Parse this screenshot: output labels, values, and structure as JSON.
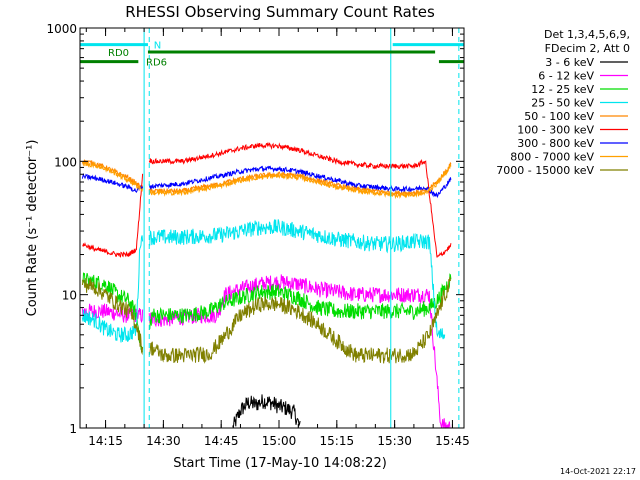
{
  "chart_data": {
    "type": "line",
    "title": "RHESSI Observing Summary Count Rates",
    "xlabel": "Start Time (17-May-10 14:08:22)",
    "ylabel": "Count Rate (s⁻¹ detector⁻¹)",
    "timestamp": "14-Oct-2021 22:17",
    "y_scale": "log",
    "ylim": [
      1,
      1000
    ],
    "xlim": [
      "14:08:22",
      "15:48:00"
    ],
    "x_tick_labels": [
      "14:15",
      "14:30",
      "14:45",
      "15:00",
      "15:15",
      "15:30",
      "15:45"
    ],
    "x_tick_values": [
      "14:15",
      "14:30",
      "14:45",
      "15:00",
      "15:15",
      "15:30",
      "15:45"
    ],
    "y_tick_labels": [
      "1",
      "10",
      "100",
      "1000"
    ],
    "y_tick_values": [
      1,
      10,
      100,
      1000
    ],
    "legend": {
      "placement": "right",
      "header": [
        "Det 1,3,4,5,6,9,",
        "FDecim 2, Att 0"
      ]
    },
    "flags": [
      {
        "label": "N",
        "color": "#00e5ee",
        "segments": [
          [
            "14:08:22",
            "14:26:00"
          ],
          [
            "15:29:30",
            "15:48:00"
          ]
        ],
        "level": 750,
        "label_at": "14:27:30"
      },
      {
        "label": "RD0",
        "color": "#008000",
        "segments": [
          [
            "14:26:00",
            "15:40:30"
          ]
        ],
        "level": 660,
        "label_at": "14:25:30"
      },
      {
        "label": "RD6",
        "color": "#008000",
        "segments": [
          [
            "14:08:22",
            "14:23:30"
          ],
          [
            "15:41:30",
            "15:48:00"
          ]
        ],
        "level": 560,
        "label_at": "14:25:30"
      }
    ],
    "vlines": [
      {
        "t": "14:25:00",
        "color": "#00e5ee",
        "style": "solid"
      },
      {
        "t": "15:29:00",
        "color": "#00e5ee",
        "style": "solid"
      },
      {
        "t": "14:26:20",
        "color": "#00e5ee",
        "style": "dashed"
      },
      {
        "t": "15:46:40",
        "color": "#00e5ee",
        "style": "dashed"
      }
    ],
    "gaps": [
      [
        "14:24:40",
        "14:26:20"
      ],
      [
        "15:44:40",
        "15:46:40"
      ]
    ],
    "series": [
      {
        "name": "3 - 6 keV",
        "color": "#000000",
        "x": [
          "14:48:00",
          "14:50:00",
          "14:52:00",
          "14:54:00",
          "14:56:00",
          "14:58:00",
          "15:00:00",
          "15:02:00",
          "15:04:00",
          "15:05:30"
        ],
        "y": [
          1.0,
          1.35,
          1.55,
          1.5,
          1.6,
          1.55,
          1.45,
          1.4,
          1.3,
          1.0
        ]
      },
      {
        "name": "6 - 12 keV",
        "color": "#ff00ff",
        "x": [
          "14:09:00",
          "14:15:00",
          "14:20:00",
          "14:24:00",
          "14:27:00",
          "14:30:00",
          "14:36:00",
          "14:40:00",
          "14:44:00",
          "14:46:00",
          "14:50:00",
          "14:55:00",
          "15:00:00",
          "15:05:00",
          "15:10:00",
          "15:15:00",
          "15:20:00",
          "15:25:00",
          "15:30:00",
          "15:36:00",
          "15:39:00",
          "15:42:00",
          "15:45:00"
        ],
        "y": [
          7.5,
          7.5,
          7,
          7,
          6.6,
          6.5,
          6.8,
          7.0,
          7.0,
          10.0,
          11.0,
          12.0,
          12.5,
          12.0,
          11.0,
          10.5,
          10.0,
          10.0,
          10.0,
          10.0,
          10.0,
          1.05,
          1.0
        ]
      },
      {
        "name": "12 - 25 keV",
        "color": "#00dd00",
        "x": [
          "14:09:00",
          "14:15:00",
          "14:18:00",
          "14:21:00",
          "14:23:00",
          "14:25:00",
          "14:27:00",
          "14:30:00",
          "14:36:00",
          "14:42:00",
          "14:45:00",
          "14:50:00",
          "14:55:00",
          "15:00:00",
          "15:05:00",
          "15:10:00",
          "15:15:00",
          "15:20:00",
          "15:25:00",
          "15:30:00",
          "15:35:00",
          "15:39:00",
          "15:41:00",
          "15:43:00",
          "15:45:00"
        ],
        "y": [
          13,
          12,
          10,
          9,
          7,
          3.0,
          7.0,
          7.0,
          7.0,
          7.5,
          8.5,
          9.5,
          10.5,
          10.5,
          9.5,
          8.0,
          7.5,
          7.5,
          7.5,
          7.5,
          7.5,
          8.0,
          9.0,
          11,
          14
        ]
      },
      {
        "name": "25 - 50 keV",
        "color": "#00e5ee",
        "x": [
          "14:09:00",
          "14:12:00",
          "14:15:00",
          "14:18:00",
          "14:21:00",
          "14:23:00",
          "14:24:00",
          "14:27:00",
          "14:35:00",
          "14:45:00",
          "14:50:00",
          "14:55:00",
          "15:00:00",
          "15:05:00",
          "15:10:00",
          "15:15:00",
          "15:20:00",
          "15:25:00",
          "15:30:00",
          "15:35:00",
          "15:39:00",
          "15:41:00",
          "15:43:00"
        ],
        "y": [
          7,
          6.5,
          5.5,
          5.0,
          5.0,
          5.5,
          26,
          27,
          27,
          28,
          30,
          32,
          32,
          30,
          28,
          26,
          25,
          24,
          24,
          25,
          25,
          5.0,
          5.0
        ]
      },
      {
        "name": "50 - 100 keV",
        "color": "#ff8800",
        "x": [
          "14:09:00",
          "14:12:00",
          "14:15:00",
          "14:18:00",
          "14:21:00",
          "14:23:00",
          "14:25:00",
          "14:27:00",
          "14:35:00",
          "14:45:00",
          "14:50:00",
          "14:55:00",
          "15:00:00",
          "15:05:00",
          "15:10:00",
          "15:15:00",
          "15:20:00",
          "15:25:00",
          "15:30:00",
          "15:35:00",
          "15:38:00",
          "15:41:00",
          "15:44:00",
          "15:45:00"
        ],
        "y": [
          100,
          97,
          90,
          82,
          75,
          68,
          62,
          60,
          60,
          68,
          74,
          78,
          80,
          78,
          72,
          66,
          62,
          60,
          58,
          58,
          60,
          70,
          90,
          100
        ]
      },
      {
        "name": "100 - 300 keV",
        "color": "#ff0000",
        "x": [
          "14:09:00",
          "14:12:00",
          "14:15:00",
          "14:18:00",
          "14:21:00",
          "14:23:00",
          "14:25:00",
          "14:27:00",
          "14:35:00",
          "14:45:00",
          "14:50:00",
          "14:55:00",
          "15:00:00",
          "15:05:00",
          "15:10:00",
          "15:15:00",
          "15:20:00",
          "15:25:00",
          "15:30:00",
          "15:35:00",
          "15:38:00",
          "15:41:00",
          "15:43:00",
          "15:45:00"
        ],
        "y": [
          24,
          22,
          21,
          20,
          20,
          22,
          110,
          100,
          100,
          115,
          125,
          132,
          130,
          122,
          110,
          100,
          95,
          92,
          92,
          92,
          100,
          19,
          21,
          24
        ]
      },
      {
        "name": "300 - 800 keV",
        "color": "#0000ff",
        "x": [
          "14:09:00",
          "14:12:00",
          "14:15:00",
          "14:18:00",
          "14:21:00",
          "14:23:00",
          "14:25:00",
          "14:27:00",
          "14:35:00",
          "14:45:00",
          "14:50:00",
          "14:55:00",
          "15:00:00",
          "15:05:00",
          "15:10:00",
          "15:15:00",
          "15:20:00",
          "15:25:00",
          "15:30:00",
          "15:35:00",
          "15:38:00",
          "15:41:00",
          "15:44:00",
          "15:45:00"
        ],
        "y": [
          77,
          75,
          72,
          68,
          64,
          60,
          66,
          65,
          68,
          78,
          84,
          88,
          88,
          84,
          78,
          72,
          66,
          64,
          62,
          62,
          64,
          55,
          70,
          77
        ]
      },
      {
        "name": "800 - 7000 keV",
        "color": "#ffa000",
        "x": [
          "14:09:00",
          "14:12:00",
          "14:15:00",
          "14:18:00",
          "14:21:00",
          "14:23:00",
          "14:25:00",
          "14:27:00",
          "14:35:00",
          "14:45:00",
          "14:50:00",
          "14:55:00",
          "15:00:00",
          "15:05:00",
          "15:10:00",
          "15:15:00",
          "15:20:00",
          "15:25:00",
          "15:30:00",
          "15:35:00",
          "15:38:00",
          "15:41:00",
          "15:44:00",
          "15:45:00"
        ],
        "y": [
          96,
          94,
          88,
          80,
          72,
          66,
          60,
          58,
          58,
          66,
          72,
          76,
          78,
          76,
          70,
          64,
          60,
          58,
          56,
          56,
          58,
          68,
          88,
          98
        ]
      },
      {
        "name": "7000 - 15000 keV",
        "color": "#808000",
        "x": [
          "14:09:00",
          "14:12:00",
          "14:15:00",
          "14:18:00",
          "14:21:00",
          "14:23:00",
          "14:25:00",
          "14:27:00",
          "14:30:00",
          "14:36:00",
          "14:42:00",
          "14:45:00",
          "14:50:00",
          "14:55:00",
          "15:00:00",
          "15:05:00",
          "15:10:00",
          "15:15:00",
          "15:20:00",
          "15:25:00",
          "15:30:00",
          "15:35:00",
          "15:39:00",
          "15:41:00",
          "15:43:00",
          "15:45:00"
        ],
        "y": [
          12,
          11.5,
          10,
          8.5,
          7.5,
          6,
          3.5,
          4.0,
          3.5,
          3.5,
          3.6,
          4.5,
          7.0,
          8.5,
          8.5,
          7.5,
          6.0,
          4.5,
          3.5,
          3.5,
          3.5,
          3.6,
          5.0,
          7.0,
          10.0,
          13.0
        ]
      }
    ]
  }
}
